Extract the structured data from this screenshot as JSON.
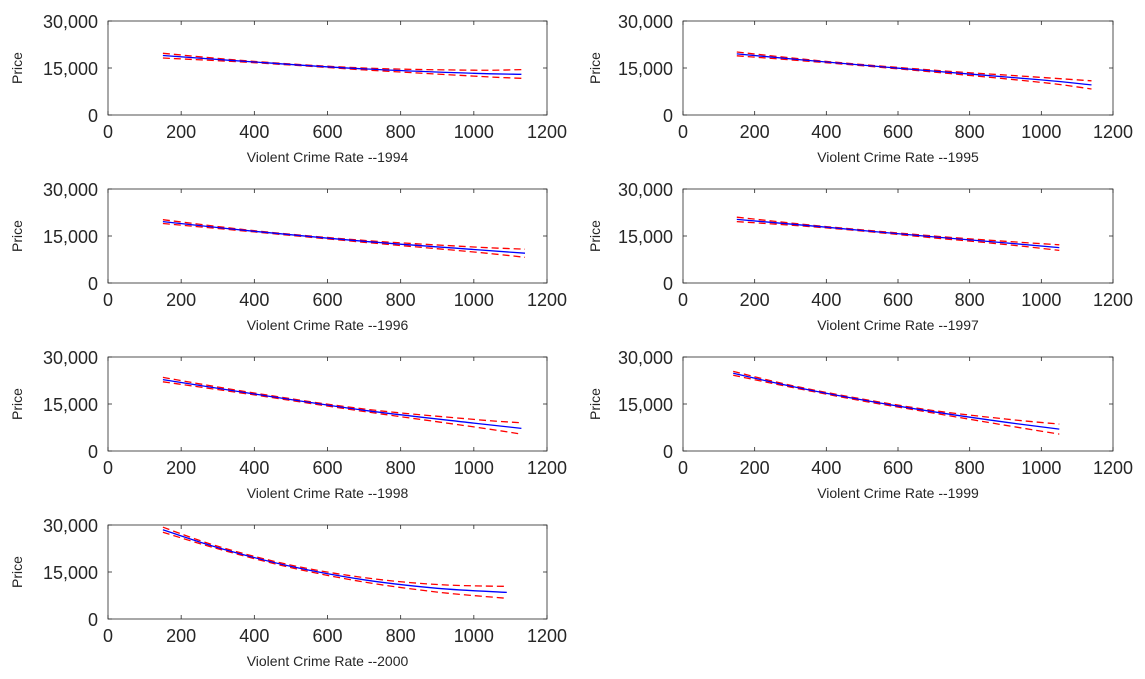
{
  "colors": {
    "fit": "#0000ff",
    "ci": "#ff0000",
    "axis": "#262626"
  },
  "chart_data": [
    {
      "type": "line",
      "xlabel": "Violent Crime Rate --1994",
      "ylabel": "Price",
      "xlim": [
        0,
        1200
      ],
      "ylim": [
        0,
        30000
      ],
      "xticks": [
        0,
        200,
        400,
        600,
        800,
        1000,
        1200
      ],
      "yticks": [
        0,
        15000,
        30000
      ],
      "ytick_labels": [
        "0",
        "15,000",
        "30,000"
      ],
      "x": [
        150,
        400,
        700,
        1000,
        1130
      ],
      "fit": [
        19000,
        16900,
        14700,
        13300,
        13000
      ],
      "ci_upper": [
        19700,
        17100,
        15000,
        14300,
        14500
      ],
      "ci_lower": [
        18200,
        16700,
        14400,
        12400,
        11700
      ]
    },
    {
      "type": "line",
      "xlabel": "Violent Crime Rate --1995",
      "ylabel": "Price",
      "xlim": [
        0,
        1200
      ],
      "ylim": [
        0,
        30000
      ],
      "xticks": [
        0,
        200,
        400,
        600,
        800,
        1000,
        1200
      ],
      "yticks": [
        0,
        15000,
        30000
      ],
      "ytick_labels": [
        "0",
        "15,000",
        "30,000"
      ],
      "x": [
        150,
        400,
        700,
        1000,
        1140
      ],
      "fit": [
        19500,
        16900,
        14000,
        11200,
        9600
      ],
      "ci_upper": [
        20100,
        17100,
        14300,
        12000,
        10900
      ],
      "ci_lower": [
        18900,
        16700,
        13700,
        10400,
        8300
      ]
    },
    {
      "type": "line",
      "xlabel": "Violent Crime Rate --1996",
      "ylabel": "Price",
      "xlim": [
        0,
        1200
      ],
      "ylim": [
        0,
        30000
      ],
      "xticks": [
        0,
        200,
        400,
        600,
        800,
        1000,
        1200
      ],
      "yticks": [
        0,
        15000,
        30000
      ],
      "ytick_labels": [
        "0",
        "15,000",
        "30,000"
      ],
      "x": [
        150,
        400,
        700,
        1000,
        1140
      ],
      "fit": [
        19600,
        16500,
        13300,
        10700,
        9500
      ],
      "ci_upper": [
        20200,
        16700,
        13600,
        11500,
        10800
      ],
      "ci_lower": [
        19000,
        16300,
        13000,
        9900,
        8200
      ]
    },
    {
      "type": "line",
      "xlabel": "Violent Crime Rate --1997",
      "ylabel": "Price",
      "xlim": [
        0,
        1200
      ],
      "ylim": [
        0,
        30000
      ],
      "xticks": [
        0,
        200,
        400,
        600,
        800,
        1000,
        1200
      ],
      "yticks": [
        0,
        15000,
        30000
      ],
      "ytick_labels": [
        "0",
        "15,000",
        "30,000"
      ],
      "x": [
        150,
        400,
        700,
        900,
        1050
      ],
      "fit": [
        20300,
        17800,
        14700,
        12800,
        11300
      ],
      "ci_upper": [
        21000,
        18000,
        15000,
        13300,
        12200
      ],
      "ci_lower": [
        19600,
        17600,
        14400,
        12300,
        10400
      ]
    },
    {
      "type": "line",
      "xlabel": "Violent Crime Rate --1998",
      "ylabel": "Price",
      "xlim": [
        0,
        1200
      ],
      "ylim": [
        0,
        30000
      ],
      "xticks": [
        0,
        200,
        400,
        600,
        800,
        1000,
        1200
      ],
      "yticks": [
        0,
        15000,
        30000
      ],
      "ytick_labels": [
        "0",
        "15,000",
        "30,000"
      ],
      "x": [
        150,
        400,
        700,
        1000,
        1130
      ],
      "fit": [
        22800,
        18200,
        13000,
        8900,
        7200
      ],
      "ci_upper": [
        23500,
        18500,
        13400,
        10100,
        9000
      ],
      "ci_lower": [
        22100,
        17900,
        12600,
        7700,
        5400
      ]
    },
    {
      "type": "line",
      "xlabel": "Violent Crime Rate --1999",
      "ylabel": "Price",
      "xlim": [
        0,
        1200
      ],
      "ylim": [
        0,
        30000
      ],
      "xticks": [
        0,
        200,
        400,
        600,
        800,
        1000,
        1200
      ],
      "yticks": [
        0,
        15000,
        30000
      ],
      "ytick_labels": [
        "0",
        "15,000",
        "30,000"
      ],
      "x": [
        140,
        300,
        500,
        700,
        900,
        1050
      ],
      "fit": [
        24800,
        20700,
        16300,
        12500,
        9200,
        7000
      ],
      "ci_upper": [
        25400,
        21000,
        16600,
        12900,
        10200,
        8600
      ],
      "ci_lower": [
        24200,
        20400,
        16000,
        12100,
        8200,
        5400
      ]
    },
    {
      "type": "line",
      "xlabel": "Violent Crime Rate --2000",
      "ylabel": "Price",
      "xlim": [
        0,
        1200
      ],
      "ylim": [
        0,
        30000
      ],
      "xticks": [
        0,
        200,
        400,
        600,
        800,
        1000,
        1200
      ],
      "yticks": [
        0,
        15000,
        30000
      ],
      "ytick_labels": [
        "0",
        "15,000",
        "30,000"
      ],
      "x": [
        150,
        300,
        500,
        700,
        900,
        1090
      ],
      "fit": [
        28500,
        22800,
        16800,
        12500,
        9800,
        8500
      ],
      "ci_upper": [
        29300,
        23200,
        17200,
        13200,
        11000,
        10400
      ],
      "ci_lower": [
        27700,
        22400,
        16400,
        11800,
        8600,
        6600
      ]
    }
  ]
}
